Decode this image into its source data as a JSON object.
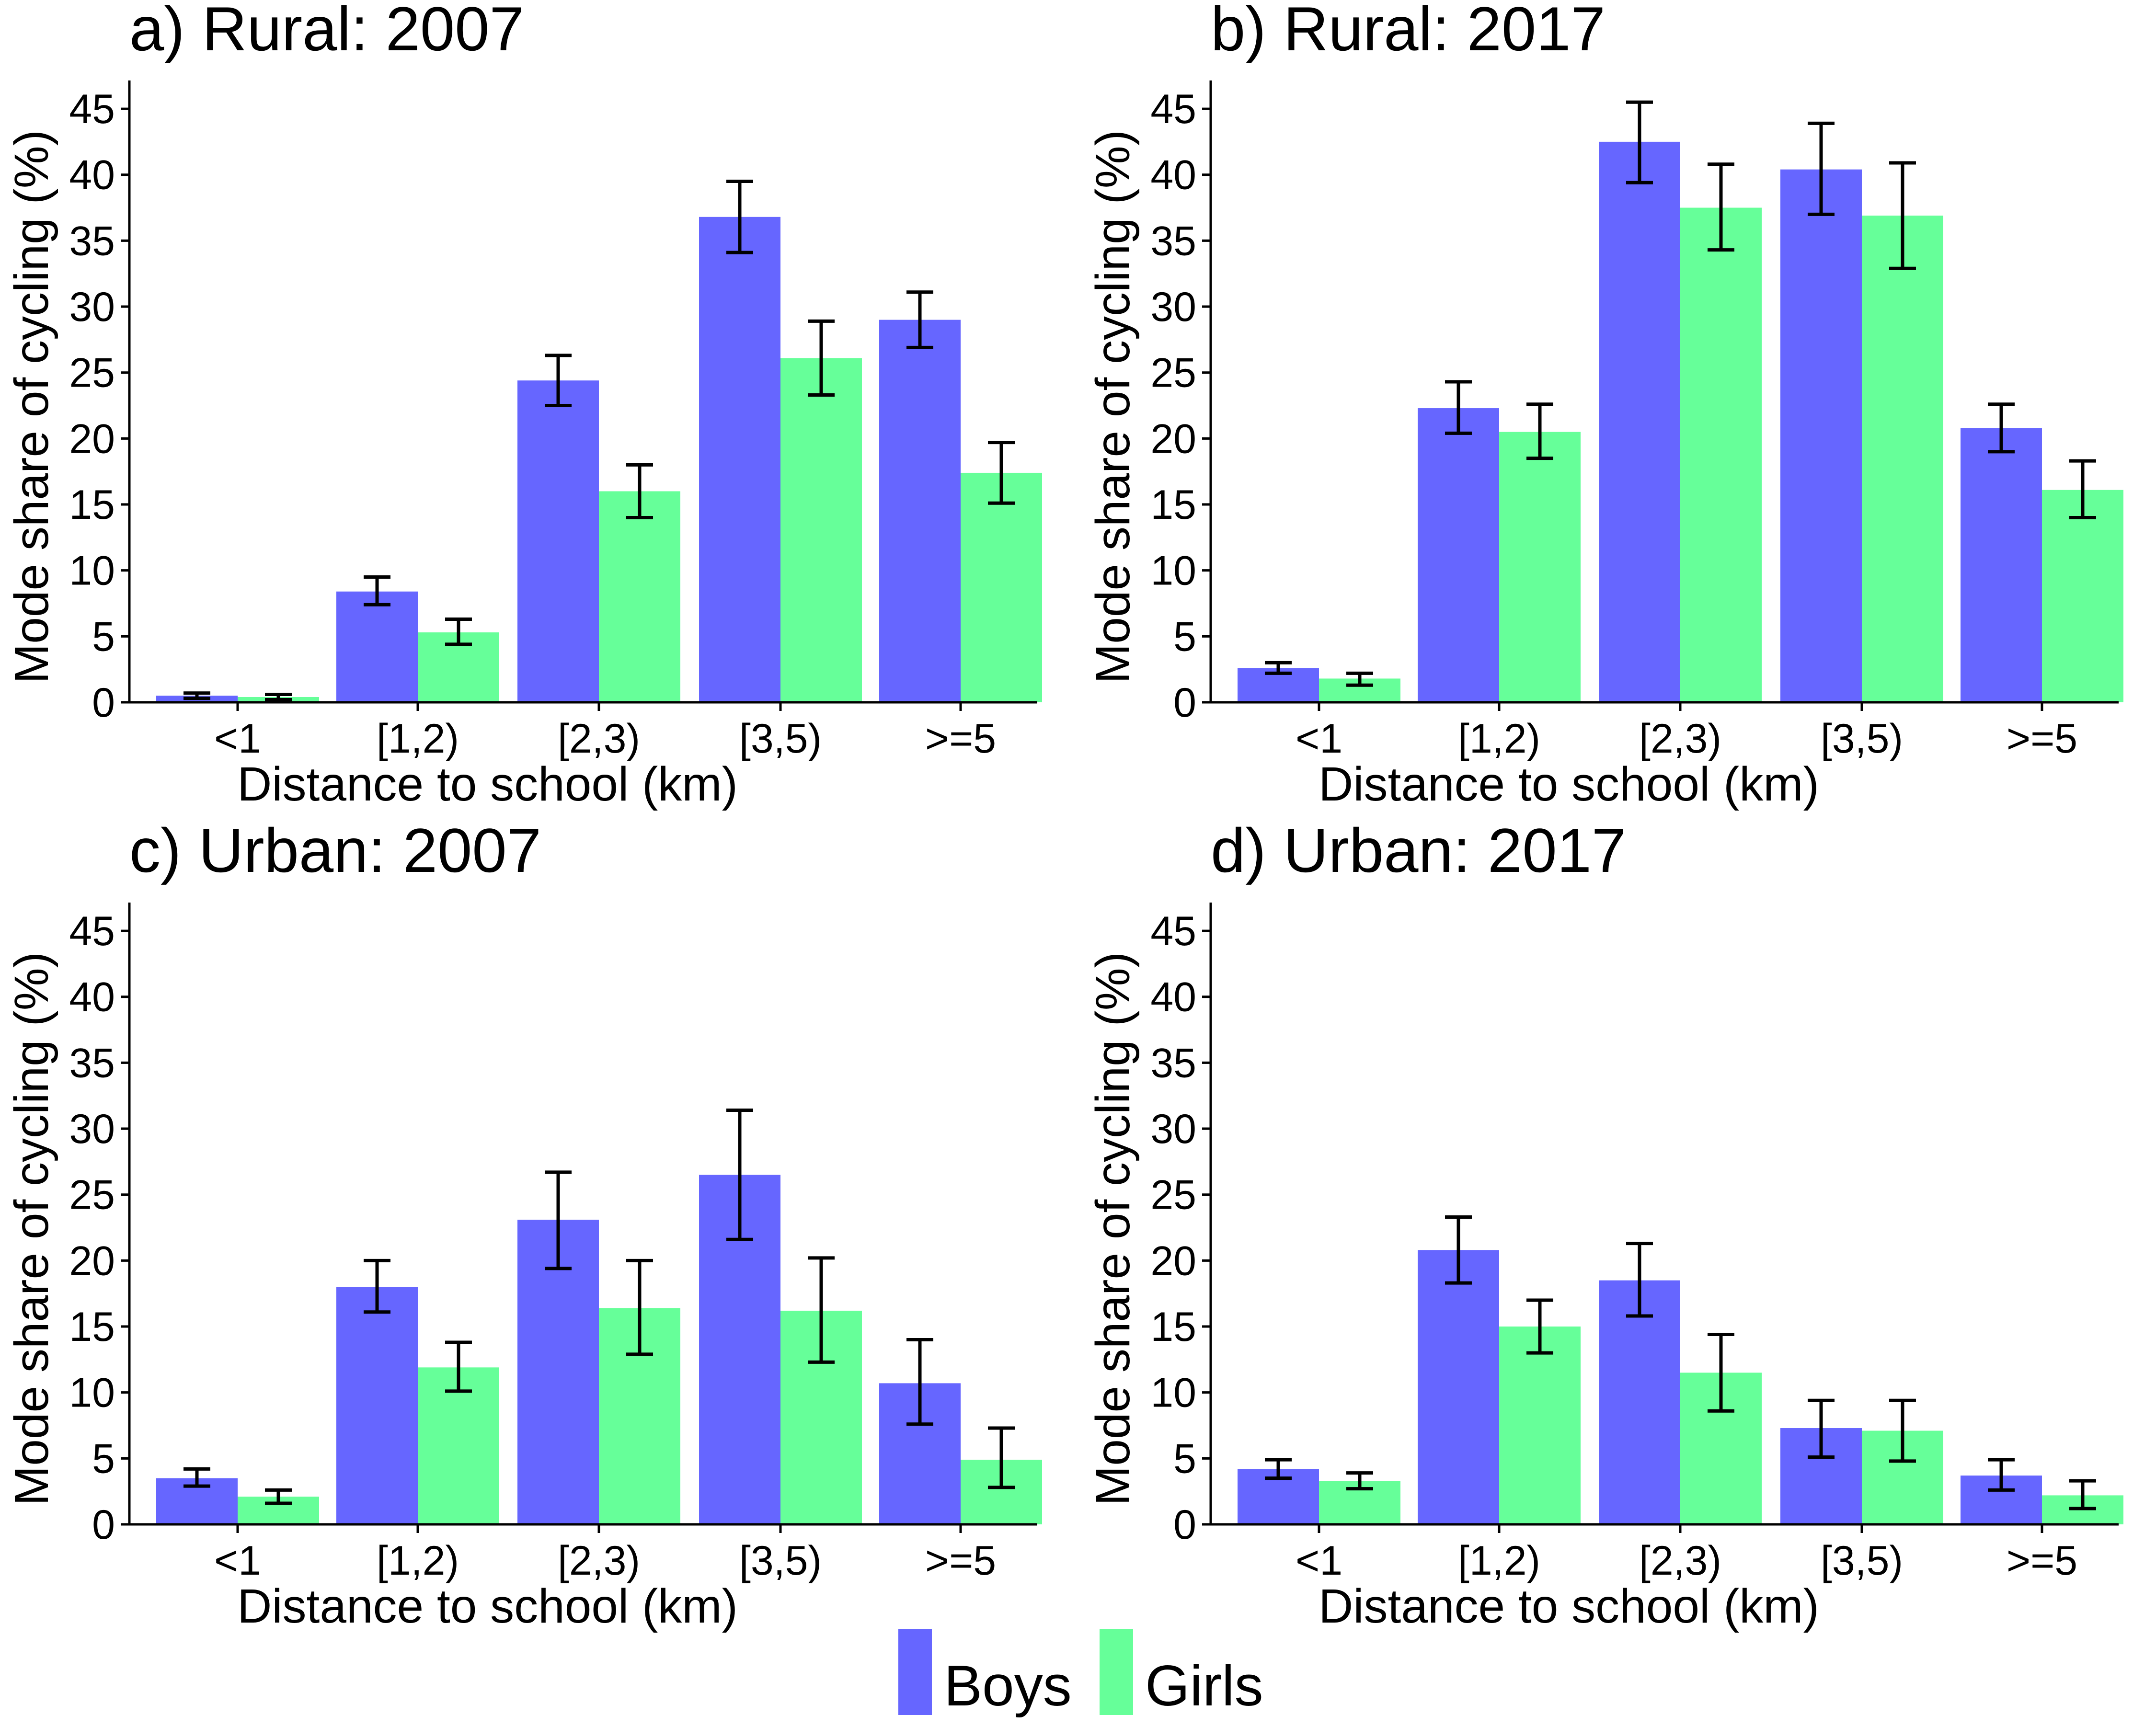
{
  "figure": {
    "colors": {
      "boys": "#6666ff",
      "girls": "#66ff99"
    },
    "legend": {
      "position": "bottom-center",
      "items": [
        {
          "label": "Boys",
          "color": "#6666ff"
        },
        {
          "label": "Girls",
          "color": "#66ff99"
        }
      ]
    }
  },
  "chart_data": [
    {
      "type": "bar",
      "title": "a) Rural: 2007",
      "xlabel": "Distance to school (km)",
      "ylabel": "Mode share of cycling (%)",
      "ylim": [
        0,
        47
      ],
      "yticks": [
        0,
        5,
        10,
        15,
        20,
        25,
        30,
        35,
        40,
        45
      ],
      "grid": false,
      "categories": [
        "<1",
        "[1,2)",
        "[2,3)",
        "[3,5)",
        ">=5"
      ],
      "series": [
        {
          "name": "Boys",
          "values": [
            0.5,
            8.4,
            24.4,
            36.8,
            29.0
          ],
          "err_low": [
            0.3,
            7.4,
            22.5,
            34.1,
            26.9
          ],
          "err_high": [
            0.7,
            9.5,
            26.3,
            39.5,
            31.1
          ]
        },
        {
          "name": "Girls",
          "values": [
            0.4,
            5.3,
            16.0,
            26.1,
            17.4
          ],
          "err_low": [
            0.2,
            4.4,
            14.0,
            23.3,
            15.1
          ],
          "err_high": [
            0.6,
            6.3,
            18.0,
            28.9,
            19.7
          ]
        }
      ]
    },
    {
      "type": "bar",
      "title": "b) Rural: 2017",
      "xlabel": "Distance to school (km)",
      "ylabel": "Mode share of cycling (%)",
      "ylim": [
        0,
        47
      ],
      "yticks": [
        0,
        5,
        10,
        15,
        20,
        25,
        30,
        35,
        40,
        45
      ],
      "grid": false,
      "categories": [
        "<1",
        "[1,2)",
        "[2,3)",
        "[3,5)",
        ">=5"
      ],
      "series": [
        {
          "name": "Boys",
          "values": [
            2.6,
            22.3,
            42.5,
            40.4,
            20.8
          ],
          "err_low": [
            2.2,
            20.4,
            39.4,
            37.0,
            19.0
          ],
          "err_high": [
            3.0,
            24.3,
            45.5,
            43.9,
            22.6
          ]
        },
        {
          "name": "Girls",
          "values": [
            1.8,
            20.5,
            37.5,
            36.9,
            16.1
          ],
          "err_low": [
            1.3,
            18.5,
            34.3,
            32.9,
            14.0
          ],
          "err_high": [
            2.2,
            22.6,
            40.8,
            40.9,
            18.3
          ]
        }
      ]
    },
    {
      "type": "bar",
      "title": "c) Urban: 2007",
      "xlabel": "Distance to school (km)",
      "ylabel": "Mode share of cycling (%)",
      "ylim": [
        0,
        47
      ],
      "yticks": [
        0,
        5,
        10,
        15,
        20,
        25,
        30,
        35,
        40,
        45
      ],
      "grid": false,
      "categories": [
        "<1",
        "[1,2)",
        "[2,3)",
        "[3,5)",
        ">=5"
      ],
      "series": [
        {
          "name": "Boys",
          "values": [
            3.5,
            18.0,
            23.1,
            26.5,
            10.7
          ],
          "err_low": [
            2.9,
            16.1,
            19.4,
            21.6,
            7.6
          ],
          "err_high": [
            4.2,
            20.0,
            26.7,
            31.4,
            14.0
          ]
        },
        {
          "name": "Girls",
          "values": [
            2.1,
            11.9,
            16.4,
            16.2,
            4.9
          ],
          "err_low": [
            1.6,
            10.1,
            12.9,
            12.3,
            2.8
          ],
          "err_high": [
            2.6,
            13.8,
            20.0,
            20.2,
            7.3
          ]
        }
      ]
    },
    {
      "type": "bar",
      "title": "d) Urban: 2017",
      "xlabel": "Distance to school (km)",
      "ylabel": "Mode share of cycling (%)",
      "ylim": [
        0,
        47
      ],
      "yticks": [
        0,
        5,
        10,
        15,
        20,
        25,
        30,
        35,
        40,
        45
      ],
      "grid": false,
      "categories": [
        "<1",
        "[1,2)",
        "[2,3)",
        "[3,5)",
        ">=5"
      ],
      "series": [
        {
          "name": "Boys",
          "values": [
            4.2,
            20.8,
            18.5,
            7.3,
            3.7
          ],
          "err_low": [
            3.5,
            18.3,
            15.8,
            5.1,
            2.6
          ],
          "err_high": [
            4.9,
            23.3,
            21.3,
            9.4,
            4.9
          ]
        },
        {
          "name": "Girls",
          "values": [
            3.3,
            15.0,
            11.5,
            7.1,
            2.2
          ],
          "err_low": [
            2.7,
            13.0,
            8.6,
            4.8,
            1.2
          ],
          "err_high": [
            3.9,
            17.0,
            14.4,
            9.4,
            3.3
          ]
        }
      ]
    }
  ]
}
